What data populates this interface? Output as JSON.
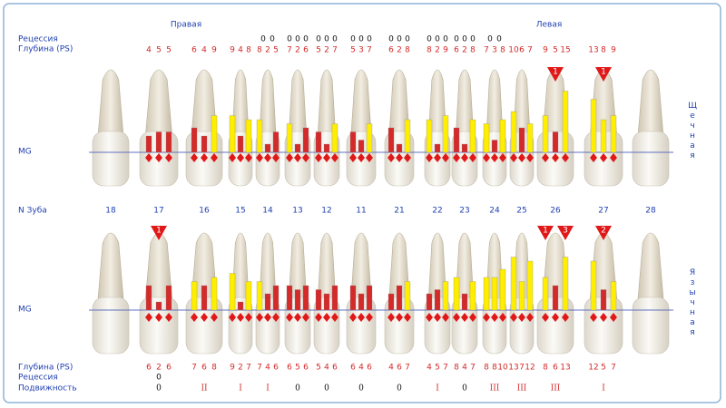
{
  "header": {
    "right": "Правая",
    "left": "Левая"
  },
  "labels": {
    "recession": "Рецессия",
    "depth": "Глубина (PS)",
    "mobility": "Подвижность",
    "tooth_number": "N Зуба",
    "mg": "MG",
    "buccal": "Щечная",
    "lingual": "Язычная"
  },
  "teeth": [
    18,
    17,
    16,
    15,
    14,
    13,
    12,
    11,
    21,
    22,
    23,
    24,
    25,
    26,
    27,
    28
  ],
  "upper": {
    "recession": [
      null,
      null,
      null,
      null,
      [
        0,
        0
      ],
      [
        0,
        0,
        0
      ],
      [
        0,
        0,
        0
      ],
      [
        0,
        0,
        0
      ],
      [
        0,
        0,
        0
      ],
      [
        0,
        0,
        0
      ],
      [
        0,
        0,
        0
      ],
      [
        0,
        0
      ],
      null,
      null,
      null,
      null
    ],
    "depth": [
      null,
      [
        4,
        5,
        5
      ],
      [
        6,
        4,
        9
      ],
      [
        9,
        4,
        8
      ],
      [
        8,
        2,
        5
      ],
      [
        7,
        2,
        6
      ],
      [
        5,
        2,
        7
      ],
      [
        5,
        3,
        7
      ],
      [
        6,
        2,
        8
      ],
      [
        8,
        2,
        9
      ],
      [
        6,
        2,
        8
      ],
      [
        7,
        3,
        8
      ],
      [
        10,
        6,
        7
      ],
      [
        9,
        5,
        15
      ],
      [
        13,
        8,
        9
      ],
      null
    ],
    "furcation": [
      null,
      null,
      null,
      null,
      null,
      null,
      null,
      null,
      null,
      null,
      null,
      null,
      null,
      [
        1
      ],
      [
        1
      ],
      null
    ]
  },
  "lower": {
    "depth": [
      null,
      [
        6,
        2,
        6
      ],
      [
        7,
        6,
        8
      ],
      [
        9,
        2,
        7
      ],
      [
        7,
        4,
        6
      ],
      [
        6,
        5,
        6
      ],
      [
        5,
        4,
        6
      ],
      [
        6,
        4,
        6
      ],
      [
        4,
        6,
        7
      ],
      [
        4,
        5,
        7
      ],
      [
        8,
        4,
        7
      ],
      [
        8,
        8,
        10
      ],
      [
        13,
        7,
        12
      ],
      [
        8,
        6,
        13
      ],
      [
        12,
        5,
        7
      ],
      null
    ],
    "recession": [
      null,
      [
        null,
        0,
        null
      ],
      null,
      null,
      null,
      null,
      null,
      null,
      null,
      null,
      null,
      null,
      null,
      null,
      null,
      null
    ],
    "mobility": [
      null,
      0,
      "II",
      "I",
      "I",
      0,
      0,
      0,
      0,
      "I",
      0,
      "III",
      "III",
      "III",
      "I",
      null
    ],
    "furcation": [
      null,
      [
        1
      ],
      null,
      null,
      null,
      null,
      null,
      null,
      null,
      null,
      null,
      null,
      null,
      [
        1,
        3
      ],
      [
        2
      ],
      null
    ]
  }
}
